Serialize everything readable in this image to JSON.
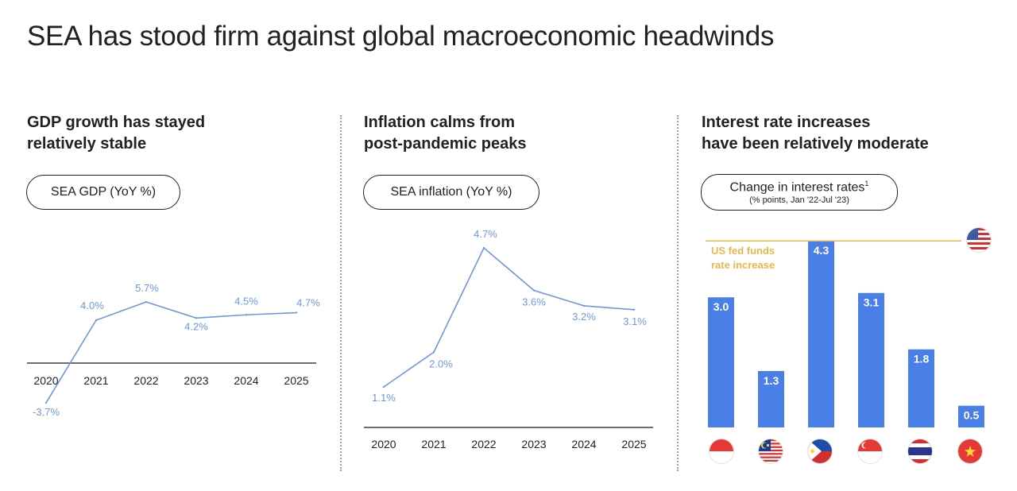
{
  "title": "SEA has stood firm against global macroeconomic headwinds",
  "panels": {
    "gdp": {
      "heading_line1": "GDP growth has stayed",
      "heading_line2": "relatively stable",
      "pill": "SEA GDP (YoY %)"
    },
    "inflation": {
      "heading_line1": "Inflation calms from",
      "heading_line2": "post-pandemic peaks",
      "pill": "SEA inflation (YoY %)"
    },
    "rates": {
      "heading_line1": "Interest rate increases",
      "heading_line2": "have been relatively moderate",
      "pill_main": "Change in interest rates",
      "pill_sup": "1",
      "pill_sub": "(% points, Jan '22-Jul '23)",
      "fed_label_line1": "US fed funds",
      "fed_label_line2": "rate increase"
    }
  },
  "colors": {
    "line": "#6d97e3",
    "bar": "#4a7fe8",
    "fed": "#e8b84a",
    "axis": "#3c4043"
  },
  "chart_data": [
    {
      "type": "line",
      "categories": [
        "2020",
        "2021",
        "2022",
        "2023",
        "2024",
        "2025"
      ],
      "values": [
        -3.7,
        4.0,
        5.7,
        4.2,
        4.5,
        4.7
      ],
      "labels": [
        "-3.7%",
        "4.0%",
        "5.7%",
        "4.2%",
        "4.5%",
        "4.7%"
      ],
      "ylabel": "SEA GDP (YoY %)"
    },
    {
      "type": "line",
      "categories": [
        "2020",
        "2021",
        "2022",
        "2023",
        "2024",
        "2025"
      ],
      "values": [
        1.1,
        2.0,
        4.7,
        3.6,
        3.2,
        3.1
      ],
      "labels": [
        "1.1%",
        "2.0%",
        "4.7%",
        "3.6%",
        "3.2%",
        "3.1%"
      ],
      "ylabel": "SEA inflation (YoY %)"
    },
    {
      "type": "bar",
      "categories": [
        "indonesia-flag",
        "malaysia-flag",
        "philippines-flag",
        "singapore-flag",
        "thailand-flag",
        "vietnam-flag"
      ],
      "values": [
        3.0,
        1.3,
        4.3,
        3.1,
        1.8,
        0.5
      ],
      "labels": [
        "3.0",
        "1.3",
        "4.3",
        "3.1",
        "1.8",
        "0.5"
      ],
      "reference_line": {
        "label": "US fed funds rate increase",
        "icon": "usa-flag"
      },
      "ylabel": "Change in interest rates (% points, Jan '22-Jul '23)"
    }
  ]
}
